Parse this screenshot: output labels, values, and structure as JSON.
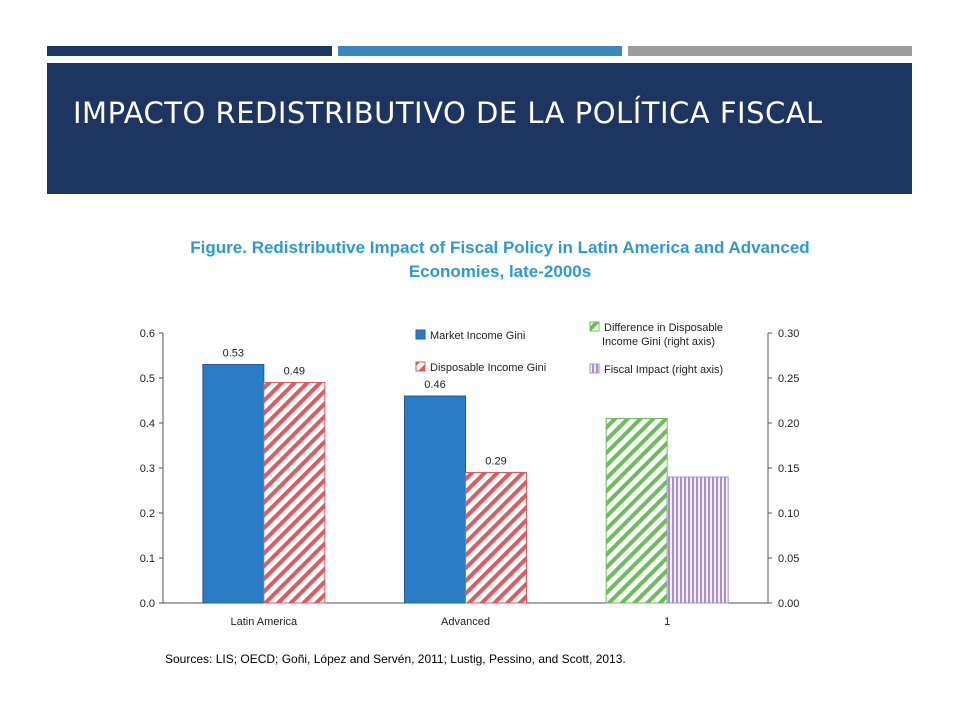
{
  "slide": {
    "title": "IMPACTO REDISTRIBUTIVO  DE LA POLÍTICA FISCAL",
    "accent_colors": [
      "#1c3561",
      "#3a88bd",
      "#9a9c9f"
    ],
    "title_band_color": "#1c3561",
    "title_text_color": "#ffffff"
  },
  "figure": {
    "title": "Figure. Redistributive Impact of Fiscal Policy in Latin America and Advanced Economies, late-2000s",
    "title_color": "#2c9ad6",
    "sources": "Sources: LIS; OECD; Goñi, López and Servén, 2011; Lustig, Pessino, and Scott, 2013."
  },
  "chart_data": {
    "type": "bar",
    "categories": [
      "Latin America",
      "Advanced",
      "1"
    ],
    "left_axis": {
      "ylim": [
        0,
        0.6
      ],
      "ticks": [
        "0.0",
        "0.1",
        "0.2",
        "0.3",
        "0.4",
        "0.5",
        "0.6"
      ]
    },
    "right_axis": {
      "ylim": [
        0,
        0.3
      ],
      "ticks": [
        "0.00",
        "0.05",
        "0.10",
        "0.15",
        "0.20",
        "0.25",
        "0.30"
      ]
    },
    "series": [
      {
        "name": "Market Income Gini",
        "axis": "left",
        "fill": "solid",
        "color": "#2b7cc6",
        "values": [
          0.53,
          0.46,
          null
        ],
        "labels": [
          "0.53",
          "0.46",
          ""
        ]
      },
      {
        "name": "Disposable Income Gini",
        "axis": "left",
        "fill": "hatch",
        "color": "#e15a5f",
        "values": [
          0.49,
          0.29,
          null
        ],
        "labels": [
          "0.49",
          "0.29",
          ""
        ]
      },
      {
        "name": "Difference in Disposable Income Gini (right axis)",
        "axis": "right",
        "fill": "hatch",
        "color": "#6bbf59",
        "values": [
          null,
          null,
          0.205
        ],
        "labels": [
          "",
          "",
          ""
        ]
      },
      {
        "name": "Fiscal Impact (right axis)",
        "axis": "right",
        "fill": "vstripe",
        "color": "#a98fcf",
        "values": [
          null,
          null,
          0.14
        ],
        "labels": [
          "",
          "",
          ""
        ]
      }
    ],
    "legend": [
      {
        "lines": [
          "Market Income Gini"
        ]
      },
      {
        "lines": [
          "Disposable Income Gini"
        ]
      },
      {
        "lines": [
          "Difference in Disposable",
          "Income Gini (right axis)"
        ]
      },
      {
        "lines": [
          "Fiscal Impact (right axis)"
        ]
      }
    ],
    "grid": false,
    "legend_position": "top-right"
  }
}
